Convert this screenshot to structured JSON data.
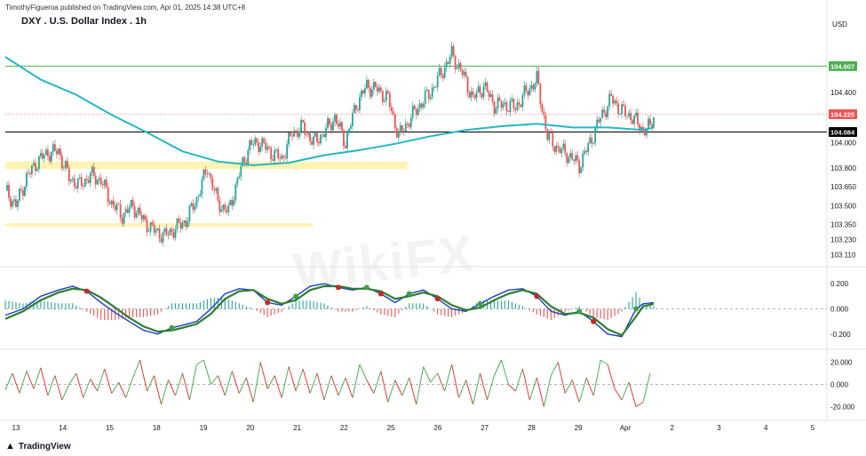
{
  "header": {
    "published": "TimothyFigueroa published on TradingView.com, Apr 01, 2025 14:38 UTC+8",
    "title": "DXY . U.S. Dollar Index . 1h",
    "currency": "USD"
  },
  "footer": {
    "brand": "TradingView"
  },
  "watermark": "WikiFX",
  "colors": {
    "up": "#26a69a",
    "down": "#ef5350",
    "ma": "#26b6c5",
    "zone": "#fff3b0",
    "green_line": "#4caf50",
    "price_tag": "#ef5350",
    "black_tag": "#000000",
    "green_tag": "#4caf50",
    "macd_fast": "#1e3fbf",
    "macd_signal": "#2e7d32",
    "rsi_up": "#4caf50",
    "rsi_down": "#e53935"
  },
  "chart_data": {
    "type": "candlestick",
    "symbol": "DXY",
    "timeframe": "1h",
    "y_axis_labels": [
      "104.400",
      "104.000",
      "103.800",
      "103.650",
      "103.500",
      "103.350",
      "103.230",
      "103.110"
    ],
    "price_tags": [
      {
        "label": "104.607",
        "value": 104.607,
        "color": "green"
      },
      {
        "label": "104.225",
        "value": 104.225,
        "color": "red"
      },
      {
        "label": "104.084",
        "value": 104.084,
        "color": "black"
      }
    ],
    "x_labels": [
      "13",
      "14",
      "15",
      "18",
      "19",
      "20",
      "21",
      "22",
      "25",
      "26",
      "27",
      "28",
      "29",
      "Apr",
      "2",
      "3",
      "4",
      "5"
    ],
    "price_path": [
      [
        0,
        103.62
      ],
      [
        6,
        103.5
      ],
      [
        12,
        103.72
      ],
      [
        18,
        103.85
      ],
      [
        24,
        103.92
      ],
      [
        30,
        103.93
      ],
      [
        36,
        103.72
      ],
      [
        42,
        103.66
      ],
      [
        48,
        103.74
      ],
      [
        54,
        103.7
      ],
      [
        60,
        103.52
      ],
      [
        66,
        103.42
      ],
      [
        72,
        103.5
      ],
      [
        78,
        103.38
      ],
      [
        84,
        103.3
      ],
      [
        90,
        103.26
      ],
      [
        96,
        103.32
      ],
      [
        102,
        103.38
      ],
      [
        108,
        103.55
      ],
      [
        114,
        103.8
      ],
      [
        120,
        103.52
      ],
      [
        126,
        103.45
      ],
      [
        132,
        103.75
      ],
      [
        138,
        103.98
      ],
      [
        144,
        104.0
      ],
      [
        150,
        103.92
      ],
      [
        156,
        103.87
      ],
      [
        162,
        104.08
      ],
      [
        168,
        104.12
      ],
      [
        174,
        104.0
      ],
      [
        180,
        104.08
      ],
      [
        186,
        104.2
      ],
      [
        192,
        104.0
      ],
      [
        198,
        104.3
      ],
      [
        204,
        104.45
      ],
      [
        210,
        104.42
      ],
      [
        216,
        104.35
      ],
      [
        222,
        104.05
      ],
      [
        228,
        104.18
      ],
      [
        234,
        104.3
      ],
      [
        240,
        104.4
      ],
      [
        246,
        104.55
      ],
      [
        252,
        104.7
      ],
      [
        258,
        104.55
      ],
      [
        264,
        104.35
      ],
      [
        270,
        104.45
      ],
      [
        276,
        104.3
      ],
      [
        282,
        104.3
      ],
      [
        288,
        104.28
      ],
      [
        294,
        104.4
      ],
      [
        300,
        104.5
      ],
      [
        306,
        104.05
      ],
      [
        312,
        103.95
      ],
      [
        318,
        103.9
      ],
      [
        324,
        103.82
      ],
      [
        330,
        104.0
      ],
      [
        336,
        104.2
      ],
      [
        342,
        104.35
      ],
      [
        348,
        104.25
      ],
      [
        354,
        104.2
      ],
      [
        360,
        104.1
      ],
      [
        364,
        104.12
      ],
      [
        366,
        104.22
      ]
    ],
    "moving_average": [
      [
        0,
        104.68
      ],
      [
        20,
        104.5
      ],
      [
        40,
        104.38
      ],
      [
        60,
        104.22
      ],
      [
        80,
        104.08
      ],
      [
        100,
        103.93
      ],
      [
        120,
        103.85
      ],
      [
        140,
        103.82
      ],
      [
        160,
        103.84
      ],
      [
        180,
        103.9
      ],
      [
        200,
        103.94
      ],
      [
        220,
        103.99
      ],
      [
        240,
        104.05
      ],
      [
        260,
        104.1
      ],
      [
        280,
        104.13
      ],
      [
        300,
        104.15
      ],
      [
        320,
        104.12
      ],
      [
        340,
        104.12
      ],
      [
        360,
        104.1
      ],
      [
        366,
        104.12
      ]
    ],
    "support_zones": [
      {
        "from": 103.79,
        "to": 103.85,
        "x_end": 0.49
      },
      {
        "from": 103.33,
        "to": 103.36,
        "x_end": 0.375
      }
    ],
    "macd": {
      "labels": [
        "0.200",
        "0.000",
        "-0.200"
      ],
      "range": [
        -0.3,
        0.3
      ],
      "fast": [
        [
          0,
          -0.05
        ],
        [
          10,
          0.0
        ],
        [
          20,
          0.1
        ],
        [
          30,
          0.15
        ],
        [
          38,
          0.18
        ],
        [
          46,
          0.14
        ],
        [
          54,
          0.05
        ],
        [
          62,
          -0.03
        ],
        [
          70,
          -0.1
        ],
        [
          78,
          -0.17
        ],
        [
          86,
          -0.2
        ],
        [
          94,
          -0.15
        ],
        [
          100,
          -0.13
        ],
        [
          108,
          -0.1
        ],
        [
          116,
          0.0
        ],
        [
          124,
          0.12
        ],
        [
          132,
          0.16
        ],
        [
          140,
          0.15
        ],
        [
          148,
          0.05
        ],
        [
          156,
          0.03
        ],
        [
          164,
          0.1
        ],
        [
          172,
          0.18
        ],
        [
          180,
          0.2
        ],
        [
          188,
          0.17
        ],
        [
          196,
          0.15
        ],
        [
          204,
          0.17
        ],
        [
          212,
          0.12
        ],
        [
          220,
          0.05
        ],
        [
          228,
          0.12
        ],
        [
          236,
          0.15
        ],
        [
          244,
          0.08
        ],
        [
          252,
          0.0
        ],
        [
          260,
          -0.02
        ],
        [
          268,
          0.04
        ],
        [
          276,
          0.1
        ],
        [
          284,
          0.15
        ],
        [
          292,
          0.16
        ],
        [
          300,
          0.1
        ],
        [
          308,
          -0.02
        ],
        [
          316,
          -0.05
        ],
        [
          324,
          -0.02
        ],
        [
          332,
          -0.1
        ],
        [
          340,
          -0.2
        ],
        [
          348,
          -0.22
        ],
        [
          356,
          0.0
        ],
        [
          360,
          0.04
        ],
        [
          366,
          0.05
        ]
      ],
      "signal": [
        [
          0,
          -0.08
        ],
        [
          10,
          -0.02
        ],
        [
          20,
          0.07
        ],
        [
          30,
          0.13
        ],
        [
          38,
          0.16
        ],
        [
          46,
          0.15
        ],
        [
          54,
          0.09
        ],
        [
          62,
          0.01
        ],
        [
          70,
          -0.07
        ],
        [
          78,
          -0.14
        ],
        [
          86,
          -0.18
        ],
        [
          94,
          -0.17
        ],
        [
          100,
          -0.15
        ],
        [
          108,
          -0.12
        ],
        [
          116,
          -0.04
        ],
        [
          124,
          0.08
        ],
        [
          132,
          0.14
        ],
        [
          140,
          0.15
        ],
        [
          148,
          0.08
        ],
        [
          156,
          0.04
        ],
        [
          164,
          0.07
        ],
        [
          172,
          0.15
        ],
        [
          180,
          0.18
        ],
        [
          188,
          0.18
        ],
        [
          196,
          0.16
        ],
        [
          204,
          0.16
        ],
        [
          212,
          0.14
        ],
        [
          220,
          0.08
        ],
        [
          228,
          0.1
        ],
        [
          236,
          0.13
        ],
        [
          244,
          0.1
        ],
        [
          252,
          0.03
        ],
        [
          260,
          -0.01
        ],
        [
          268,
          0.01
        ],
        [
          276,
          0.07
        ],
        [
          284,
          0.12
        ],
        [
          292,
          0.15
        ],
        [
          300,
          0.12
        ],
        [
          308,
          0.02
        ],
        [
          316,
          -0.04
        ],
        [
          324,
          -0.03
        ],
        [
          332,
          -0.07
        ],
        [
          340,
          -0.16
        ],
        [
          348,
          -0.21
        ],
        [
          356,
          -0.06
        ],
        [
          360,
          0.02
        ],
        [
          366,
          0.04
        ]
      ]
    },
    "oscillator": {
      "labels": [
        "20.000",
        "0.000",
        "-20.000"
      ],
      "range": [
        -30,
        30
      ],
      "values": [
        [
          0,
          -5
        ],
        [
          4,
          10
        ],
        [
          8,
          -8
        ],
        [
          12,
          12
        ],
        [
          16,
          -4
        ],
        [
          20,
          15
        ],
        [
          24,
          -10
        ],
        [
          28,
          8
        ],
        [
          32,
          -14
        ],
        [
          36,
          0
        ],
        [
          40,
          10
        ],
        [
          44,
          -12
        ],
        [
          48,
          5
        ],
        [
          52,
          -6
        ],
        [
          56,
          14
        ],
        [
          60,
          -8
        ],
        [
          64,
          2
        ],
        [
          68,
          -12
        ],
        [
          72,
          6
        ],
        [
          76,
          22
        ],
        [
          80,
          -6
        ],
        [
          84,
          8
        ],
        [
          88,
          -18
        ],
        [
          92,
          4
        ],
        [
          96,
          -10
        ],
        [
          100,
          10
        ],
        [
          104,
          -14
        ],
        [
          108,
          18
        ],
        [
          112,
          22
        ],
        [
          116,
          0
        ],
        [
          120,
          8
        ],
        [
          124,
          -10
        ],
        [
          128,
          12
        ],
        [
          132,
          -8
        ],
        [
          136,
          6
        ],
        [
          140,
          -16
        ],
        [
          144,
          20
        ],
        [
          148,
          -4
        ],
        [
          152,
          8
        ],
        [
          156,
          -12
        ],
        [
          160,
          16
        ],
        [
          164,
          -6
        ],
        [
          168,
          14
        ],
        [
          172,
          -8
        ],
        [
          176,
          10
        ],
        [
          180,
          -14
        ],
        [
          184,
          8
        ],
        [
          188,
          -10
        ],
        [
          192,
          6
        ],
        [
          196,
          -12
        ],
        [
          200,
          18
        ],
        [
          204,
          4
        ],
        [
          208,
          -8
        ],
        [
          212,
          12
        ],
        [
          216,
          -16
        ],
        [
          220,
          4
        ],
        [
          224,
          -10
        ],
        [
          228,
          6
        ],
        [
          232,
          -18
        ],
        [
          236,
          16
        ],
        [
          240,
          2
        ],
        [
          244,
          10
        ],
        [
          248,
          -6
        ],
        [
          252,
          18
        ],
        [
          256,
          -12
        ],
        [
          260,
          4
        ],
        [
          264,
          -18
        ],
        [
          268,
          10
        ],
        [
          272,
          -14
        ],
        [
          276,
          8
        ],
        [
          280,
          22
        ],
        [
          284,
          0
        ],
        [
          288,
          -6
        ],
        [
          292,
          14
        ],
        [
          296,
          -14
        ],
        [
          300,
          6
        ],
        [
          304,
          -20
        ],
        [
          308,
          8
        ],
        [
          312,
          20
        ],
        [
          316,
          -8
        ],
        [
          320,
          4
        ],
        [
          324,
          -16
        ],
        [
          328,
          6
        ],
        [
          332,
          -10
        ],
        [
          336,
          22
        ],
        [
          340,
          18
        ],
        [
          344,
          -4
        ],
        [
          348,
          -14
        ],
        [
          352,
          2
        ],
        [
          356,
          -20
        ],
        [
          360,
          -16
        ],
        [
          364,
          10
        ]
      ]
    }
  }
}
